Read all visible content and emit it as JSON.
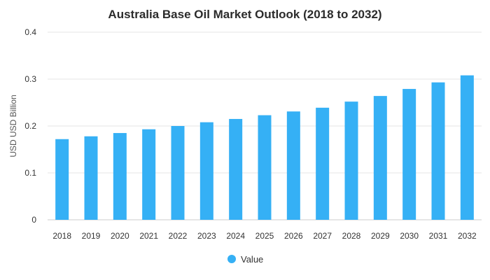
{
  "chart_data": {
    "type": "bar",
    "title": "Australia Base Oil Market Outlook (2018 to 2032)",
    "xlabel": "",
    "ylabel": "USD USD Billion",
    "categories": [
      "2018",
      "2019",
      "2020",
      "2021",
      "2022",
      "2023",
      "2024",
      "2025",
      "2026",
      "2027",
      "2028",
      "2029",
      "2030",
      "2031",
      "2032"
    ],
    "series": [
      {
        "name": "Value",
        "color": "#35b0f5",
        "values": [
          0.172,
          0.178,
          0.185,
          0.193,
          0.2,
          0.208,
          0.215,
          0.223,
          0.231,
          0.239,
          0.252,
          0.264,
          0.279,
          0.293,
          0.308
        ]
      }
    ],
    "ylim": [
      0,
      0.4
    ],
    "yticks": [
      "0",
      "0.1",
      "0.2",
      "0.3",
      "0.4"
    ],
    "grid": true,
    "legend_position": "bottom-center"
  }
}
